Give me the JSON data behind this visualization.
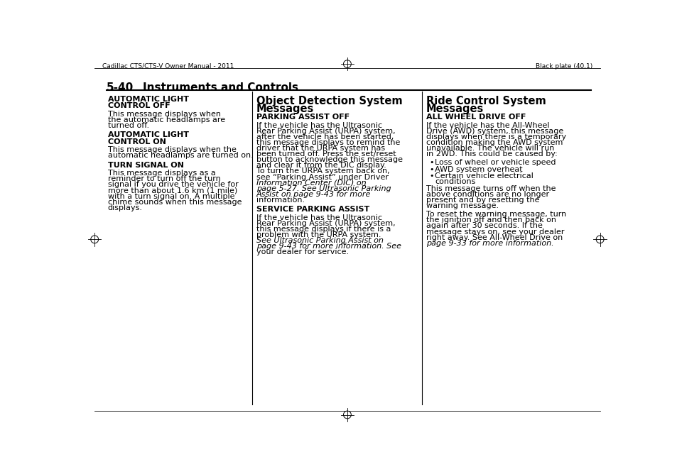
{
  "bg_color": "#ffffff",
  "header_left": "Cadillac CTS/CTS-V Owner Manual - 2011",
  "header_right": "Black plate (40,1)",
  "section_label": "5-40",
  "section_title": "Instruments and Controls",
  "col1_content": [
    {
      "type": "heading",
      "text": "AUTOMATIC LIGHT\nCONTROL OFF"
    },
    {
      "type": "body",
      "text": "This message displays when\nthe automatic headlamps are\nturned off."
    },
    {
      "type": "heading",
      "text": "AUTOMATIC LIGHT\nCONTROL ON"
    },
    {
      "type": "body",
      "text": "This message displays when the\nautomatic headlamps are turned on."
    },
    {
      "type": "heading",
      "text": "TURN SIGNAL ON"
    },
    {
      "type": "body",
      "text": "This message displays as a\nreminder to turn off the turn\nsignal if you drive the vehicle for\nmore than about 1.6 km (1 mile)\nwith a turn signal on. A multiple\nchime sounds when this message\ndisplays."
    }
  ],
  "col2_title_line1": "Object Detection System",
  "col2_title_line2": "Messages",
  "col2_content": [
    {
      "type": "heading2",
      "text": "PARKING ASSIST OFF"
    },
    {
      "type": "body",
      "lines": [
        {
          "text": "If the vehicle has the Ultrasonic",
          "italic": false
        },
        {
          "text": "Rear Parking Assist (URPA) system,",
          "italic": false
        },
        {
          "text": "after the vehicle has been started,",
          "italic": false
        },
        {
          "text": "this message displays to remind the",
          "italic": false
        },
        {
          "text": "driver that the URPA system has",
          "italic": false
        },
        {
          "text": "been turned off. Press the set/reset",
          "italic": false
        },
        {
          "text": "button to acknowledge this message",
          "italic": false
        },
        {
          "text": "and clear it from the DIC display.",
          "italic": false
        },
        {
          "text": "To turn the URPA system back on,",
          "italic": false
        },
        {
          "text": "see “Parking Assist” under Driver",
          "italic": false
        },
        {
          "text": "Information Center (DIC) on",
          "italic": true
        },
        {
          "text": "page 5-27. See Ultrasonic Parking",
          "italic": true
        },
        {
          "text": "Assist on page 9-43 for more",
          "italic": true
        },
        {
          "text": "information.",
          "italic": false
        }
      ]
    },
    {
      "type": "heading2",
      "text": "SERVICE PARKING ASSIST"
    },
    {
      "type": "body",
      "lines": [
        {
          "text": "If the vehicle has the Ultrasonic",
          "italic": false
        },
        {
          "text": "Rear Parking Assist (URPA) system,",
          "italic": false
        },
        {
          "text": "this message displays if there is a",
          "italic": false
        },
        {
          "text": "problem with the URPA system.",
          "italic": false
        },
        {
          "text": "See Ultrasonic Parking Assist on",
          "italic": true
        },
        {
          "text": "page 9-43 for more information. See",
          "italic": true
        },
        {
          "text": "your dealer for service.",
          "italic": false
        }
      ]
    }
  ],
  "col3_title_line1": "Ride Control System",
  "col3_title_line2": "Messages",
  "col3_content": [
    {
      "type": "heading2",
      "text": "ALL WHEEL DRIVE OFF"
    },
    {
      "type": "body",
      "lines": [
        {
          "text": "If the vehicle has the All-Wheel",
          "italic": false
        },
        {
          "text": "Drive (AWD) system, this message",
          "italic": false
        },
        {
          "text": "displays when there is a temporary",
          "italic": false
        },
        {
          "text": "condition making the AWD system",
          "italic": false
        },
        {
          "text": "unavailable. The vehicle will run",
          "italic": false
        },
        {
          "text": "in 2WD. This could be caused by:",
          "italic": false
        }
      ]
    },
    {
      "type": "bullet",
      "text": "Loss of wheel or vehicle speed"
    },
    {
      "type": "bullet",
      "text": "AWD system overheat"
    },
    {
      "type": "bullet",
      "text": "Certain vehicle electrical\nconditions"
    },
    {
      "type": "body",
      "lines": [
        {
          "text": "This message turns off when the",
          "italic": false
        },
        {
          "text": "above conditions are no longer",
          "italic": false
        },
        {
          "text": "present and by resetting the",
          "italic": false
        },
        {
          "text": "warning message.",
          "italic": false
        }
      ]
    },
    {
      "type": "body",
      "lines": [
        {
          "text": "To reset the warning message, turn",
          "italic": false
        },
        {
          "text": "the ignition off and then back on",
          "italic": false
        },
        {
          "text": "again after 30 seconds. If the",
          "italic": false
        },
        {
          "text": "message stays on, see your dealer",
          "italic": false
        },
        {
          "text": "right away. See All-Wheel Drive on",
          "italic": false
        },
        {
          "text": "page 9-33 for more information.",
          "italic": true
        }
      ]
    }
  ]
}
